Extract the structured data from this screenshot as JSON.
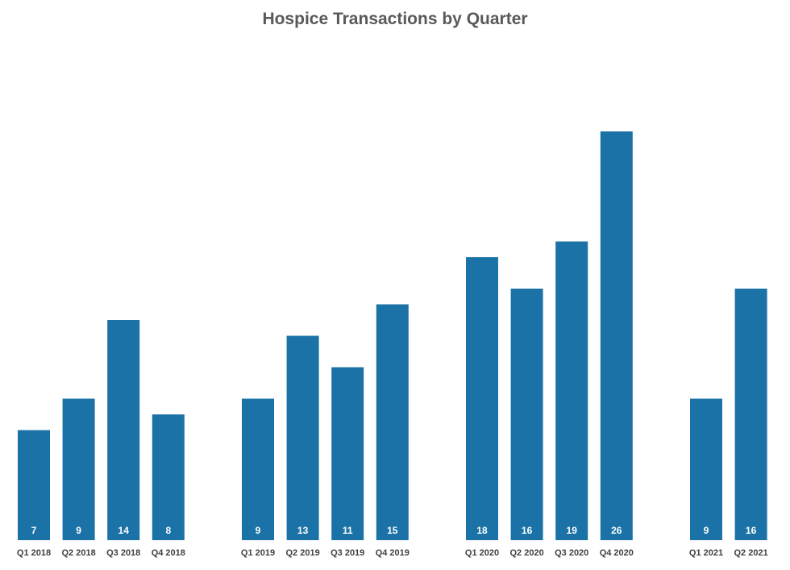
{
  "chart_data": {
    "type": "bar",
    "title": "Hospice Transactions by Quarter",
    "xlabel": "",
    "ylabel": "",
    "ylim": [
      0,
      26
    ],
    "grid": false,
    "legend": "none",
    "bar_color": "#1A72A6",
    "categories": [
      "Q1 2018",
      "Q2 2018",
      "Q3 2018",
      "Q4 2018",
      "Q1 2019",
      "Q2 2019",
      "Q3 2019",
      "Q4 2019",
      "Q1 2020",
      "Q2 2020",
      "Q3 2020",
      "Q4 2020",
      "Q1 2021",
      "Q2 2021"
    ],
    "values": [
      7,
      9,
      14,
      8,
      9,
      13,
      11,
      15,
      18,
      16,
      19,
      26,
      9,
      16
    ],
    "data_labels": [
      "7",
      "9",
      "14",
      "8",
      "9",
      "13",
      "11",
      "15",
      "18",
      "16",
      "19",
      "26",
      "9",
      "16"
    ]
  }
}
